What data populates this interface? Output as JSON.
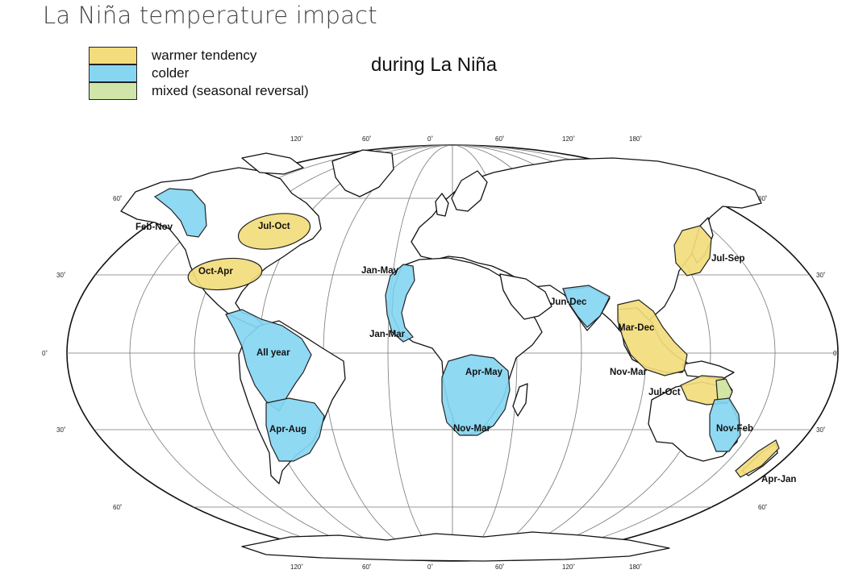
{
  "page_title": "La Niña temperature impact",
  "subtitle": "during La Niña",
  "colors": {
    "warmer": "#f2dc7b",
    "colder": "#86d6f2",
    "mixed": "#cfe6a8",
    "land": "#ffffff",
    "outline": "#111111",
    "grid": "#777777"
  },
  "legend": [
    {
      "label": "warmer tendency",
      "color": "#f2dc7b"
    },
    {
      "label": "colder",
      "color": "#86d6f2"
    },
    {
      "label": "mixed (seasonal reversal)",
      "color": "#cfe6a8"
    }
  ],
  "graticule": {
    "top_longitude_labels": [
      "120˚",
      "60˚",
      "0˚",
      "60˚",
      "120˚",
      "180˚"
    ],
    "bottom_longitude_labels": [
      "120˚",
      "60˚",
      "0˚",
      "60˚",
      "120˚",
      "180˚"
    ],
    "left_latitude_labels": [
      "60˚",
      "30˚",
      "0˚",
      "30˚",
      "60˚"
    ],
    "right_latitude_labels": [
      "60˚",
      "30˚",
      "0˚",
      "30˚",
      "60˚"
    ]
  },
  "regions": [
    {
      "label": "Feb-Nov",
      "type": "colder"
    },
    {
      "label": "Jul-Oct",
      "type": "warmer"
    },
    {
      "label": "Oct-Apr",
      "type": "warmer"
    },
    {
      "label": "All year",
      "type": "colder"
    },
    {
      "label": "Apr-Aug",
      "type": "colder"
    },
    {
      "label": "Jan-May",
      "type": "colder"
    },
    {
      "label": "Jan-Mar",
      "type": "colder"
    },
    {
      "label": "Apr-May",
      "type": "colder"
    },
    {
      "label": "Nov-Mar",
      "type": "colder"
    },
    {
      "label": "Jun-Dec",
      "type": "colder"
    },
    {
      "label": "Mar-Dec",
      "type": "warmer"
    },
    {
      "label": "Nov-Mar",
      "type": "warmer"
    },
    {
      "label": "Jul-Sep",
      "type": "warmer"
    },
    {
      "label": "Jul-Oct",
      "type": "warmer"
    },
    {
      "label": "Nov-Feb",
      "type": "colder"
    },
    {
      "label": "Apr-Jan",
      "type": "warmer"
    }
  ]
}
